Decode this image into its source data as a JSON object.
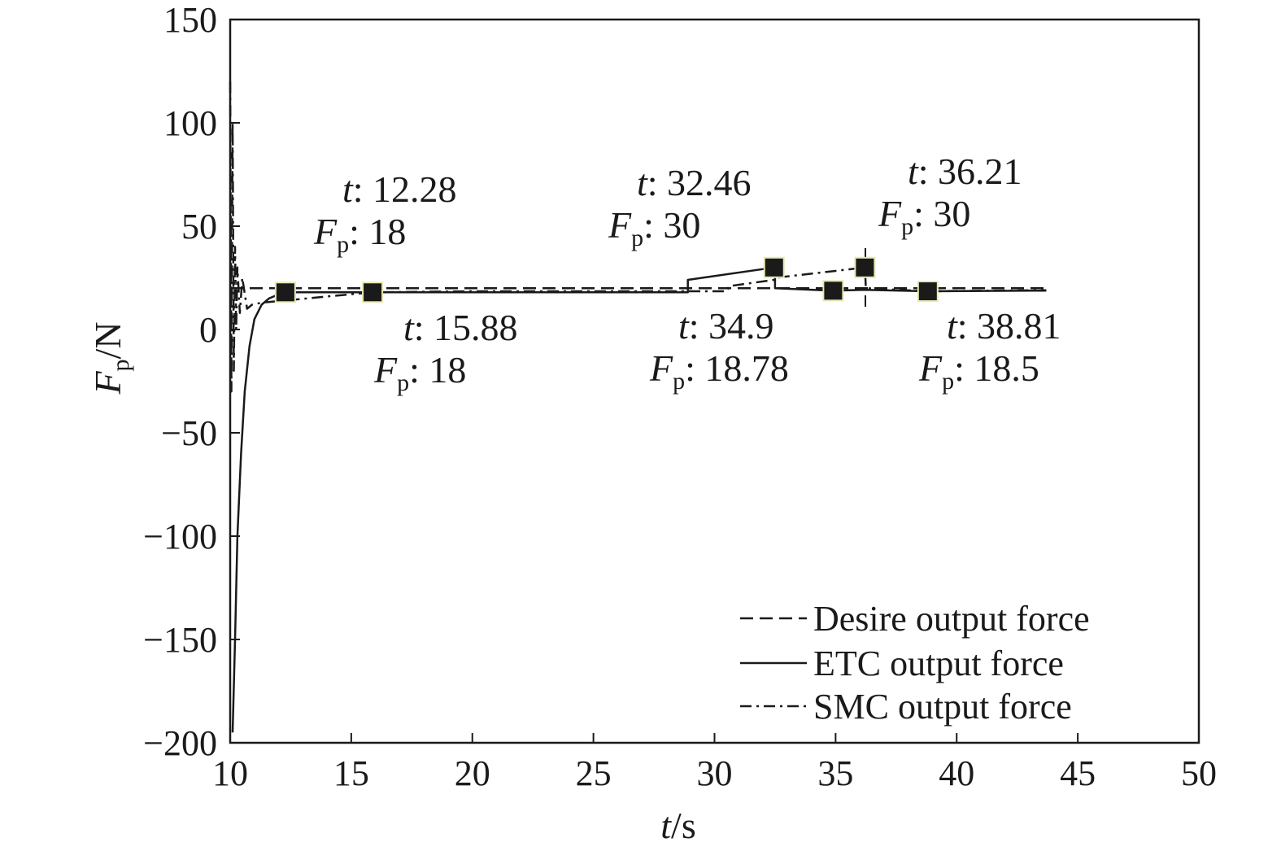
{
  "chart_data": {
    "type": "line",
    "xlabel": {
      "sym": "t",
      "unit": "/s"
    },
    "ylabel": {
      "sym": "F",
      "sub": "p",
      "unit": "/N"
    },
    "xlim": [
      10,
      50
    ],
    "ylim": [
      -200,
      150
    ],
    "xticks": [
      10,
      15,
      20,
      25,
      30,
      35,
      40,
      45,
      50
    ],
    "yticks": [
      150,
      100,
      50,
      0,
      -50,
      -100,
      -150,
      -200
    ],
    "xtick_labels": [
      "10",
      "15",
      "20",
      "25",
      "30",
      "35",
      "40",
      "45",
      "50"
    ],
    "ytick_labels": [
      "150",
      "100",
      "50",
      "0",
      "−50",
      "−100",
      "−150",
      "−200"
    ],
    "grid": false,
    "legend_position": "bottom-right",
    "series": [
      {
        "name": "Desire output force",
        "style": "dashed",
        "x": [
          10,
          43.7
        ],
        "y": [
          20,
          20
        ]
      },
      {
        "name": "ETC output force",
        "style": "solid",
        "x": [
          10.1,
          10.2,
          10.3,
          10.45,
          10.6,
          10.8,
          11.0,
          11.3,
          11.6,
          12.0,
          12.28,
          13,
          15.88,
          20,
          25,
          28.9,
          28.9,
          32.46,
          32.46,
          32.5,
          32.5,
          34.9,
          36.21,
          38.81,
          43.7
        ],
        "y": [
          -195,
          -150,
          -100,
          -60,
          -30,
          -8,
          5,
          12,
          15,
          17,
          18,
          18,
          18,
          18,
          18,
          18,
          24,
          30,
          30,
          30,
          20,
          18.78,
          19.2,
          18.5,
          18.8
        ]
      },
      {
        "name": "SMC output force",
        "style": "dashdot",
        "x": [
          10,
          10.05,
          10.1,
          10.15,
          10.2,
          10.25,
          10.3,
          10.4,
          10.5,
          10.7,
          10.9,
          11.3,
          12.28,
          14,
          15.88,
          20,
          25,
          30.5,
          30.6,
          32.46,
          32.5,
          36.21,
          36.25,
          38.81,
          43.7
        ],
        "y": [
          120,
          -30,
          100,
          -20,
          40,
          0,
          30,
          8,
          25,
          10,
          12,
          13,
          14,
          16,
          18,
          18.5,
          18.5,
          18.5,
          21,
          24,
          25,
          30,
          20,
          18.5,
          19
        ]
      }
    ],
    "markers": [
      {
        "x": 12.28,
        "y": 18
      },
      {
        "x": 15.88,
        "y": 18
      },
      {
        "x": 32.46,
        "y": 30
      },
      {
        "x": 34.9,
        "y": 18.78
      },
      {
        "x": 36.21,
        "y": 30
      },
      {
        "x": 38.81,
        "y": 18.5
      }
    ],
    "annotations": [
      {
        "t_label": "t",
        "t_value": ": 12.28",
        "f_label": "F",
        "f_sub": "p",
        "f_value": ": 18"
      },
      {
        "t_label": "t",
        "t_value": ": 15.88",
        "f_label": "F",
        "f_sub": "p",
        "f_value": ": 18"
      },
      {
        "t_label": "t",
        "t_value": ": 32.46",
        "f_label": "F",
        "f_sub": "p",
        "f_value": ": 30"
      },
      {
        "t_label": "t",
        "t_value": ": 34.9",
        "f_label": "F",
        "f_sub": "p",
        "f_value": ": 18.78"
      },
      {
        "t_label": "t",
        "t_value": ": 36.21",
        "f_label": "F",
        "f_sub": "p",
        "f_value": ": 30"
      },
      {
        "t_label": "t",
        "t_value": ": 38.81",
        "f_label": "F",
        "f_sub": "p",
        "f_value": ": 18.5"
      }
    ]
  }
}
